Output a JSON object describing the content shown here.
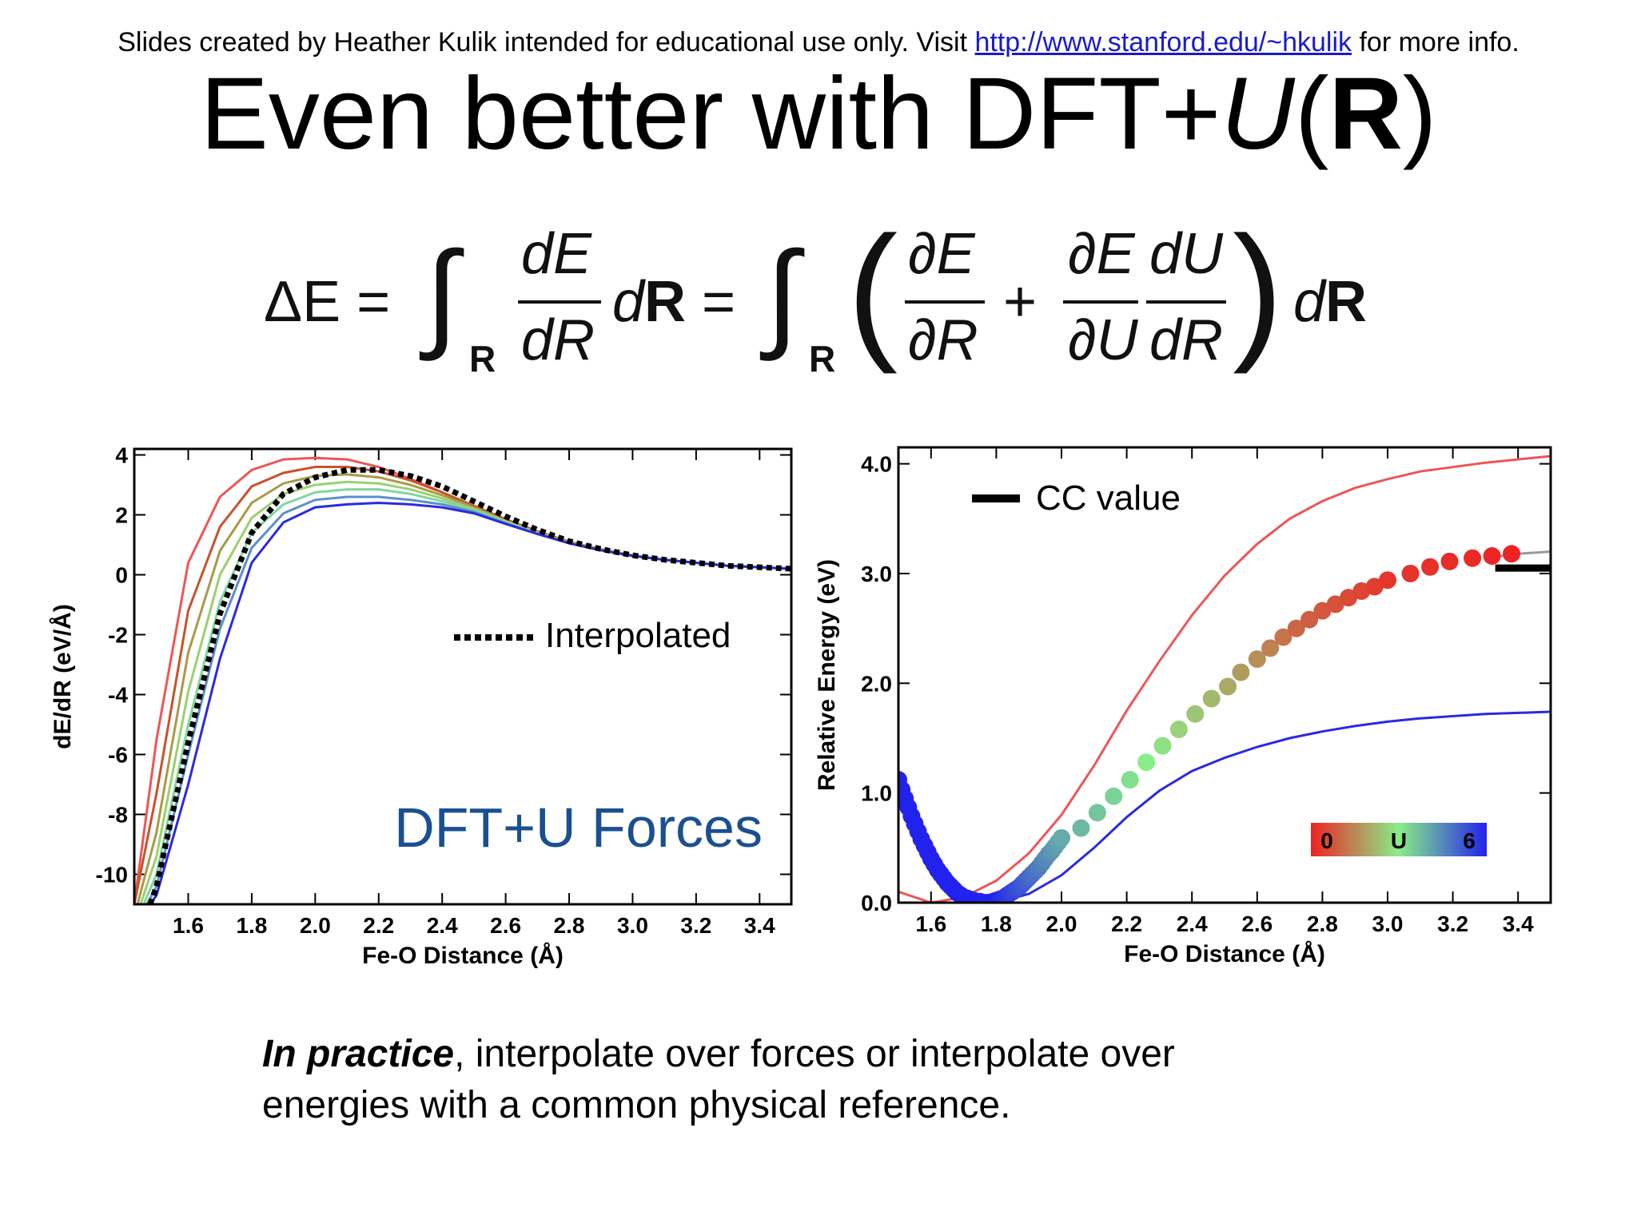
{
  "header": {
    "credit_prefix": "Slides created by Heather Kulik intended for educational use only. Visit ",
    "credit_link": "http://www.stanford.edu/~hkulik",
    "credit_suffix": " for more info."
  },
  "title": {
    "part1": "Even better with DFT+",
    "part2": "U",
    "part3": "(",
    "part4": "R",
    "part5": ")"
  },
  "equation": {
    "text": "ΔE = ∫_R dE/dR dR = ∫_R ( ∂E/∂R + ∂E/∂U dU/dR ) dR",
    "lhs": "ΔE =",
    "int_sub": "R",
    "frac1_num": "dE",
    "frac1_den": "dR",
    "d": "d",
    "R": "R",
    "eq": "=",
    "pfrac1_num": "∂E",
    "pfrac1_den": "∂R",
    "plus": "+",
    "pfrac2_num": "∂E",
    "pfrac2_den": "∂U",
    "frac3_num": "dU",
    "frac3_den": "dR"
  },
  "chart_data": [
    {
      "type": "line",
      "xlabel": "Fe-O Distance (Å)",
      "ylabel": "dE/dR (eV/Å)",
      "xlim": [
        1.43,
        3.5
      ],
      "ylim": [
        -11,
        4.2
      ],
      "xticks": [
        "1.6",
        "1.8",
        "2.0",
        "2.2",
        "2.4",
        "2.6",
        "2.8",
        "3.0",
        "3.2",
        "3.4"
      ],
      "yticks": [
        "4",
        "2",
        "0",
        "-2",
        "-4",
        "-6",
        "-8",
        "-10"
      ],
      "annotation": "DFT+U Forces",
      "annotation_color": "#1a4f91",
      "legend": [
        {
          "label": "Interpolated",
          "style": "dotted",
          "color": "#000000"
        }
      ],
      "series": [
        {
          "color": "#ee5555",
          "x": [
            1.43,
            1.5,
            1.6,
            1.7,
            1.8,
            1.9,
            2.0,
            2.1,
            2.2,
            2.3,
            2.4,
            2.5,
            2.6,
            2.7,
            2.8,
            2.9,
            3.0,
            3.1,
            3.2,
            3.3,
            3.4,
            3.5
          ],
          "y": [
            -11,
            -5.5,
            0.4,
            2.6,
            3.5,
            3.85,
            3.9,
            3.85,
            3.6,
            3.2,
            2.75,
            2.3,
            1.85,
            1.45,
            1.1,
            0.85,
            0.65,
            0.5,
            0.4,
            0.3,
            0.25,
            0.2
          ]
        },
        {
          "color": "#c8522a",
          "x": [
            1.43,
            1.5,
            1.6,
            1.7,
            1.8,
            1.9,
            2.0,
            2.1,
            2.2,
            2.3,
            2.4,
            2.5,
            2.6,
            2.7,
            2.8,
            2.9,
            3.0,
            3.1,
            3.2,
            3.3,
            3.4,
            3.5
          ],
          "y": [
            -11,
            -7.3,
            -1.2,
            1.6,
            2.95,
            3.4,
            3.6,
            3.6,
            3.45,
            3.15,
            2.75,
            2.3,
            1.85,
            1.45,
            1.1,
            0.85,
            0.65,
            0.5,
            0.4,
            0.3,
            0.25,
            0.2
          ]
        },
        {
          "color": "#a89a48",
          "x": [
            1.44,
            1.5,
            1.6,
            1.7,
            1.8,
            1.9,
            2.0,
            2.1,
            2.2,
            2.3,
            2.4,
            2.5,
            2.6,
            2.7,
            2.8,
            2.9,
            3.0,
            3.1,
            3.2,
            3.3,
            3.4,
            3.5
          ],
          "y": [
            -11,
            -8.6,
            -2.6,
            0.8,
            2.4,
            3.05,
            3.3,
            3.35,
            3.25,
            3.0,
            2.65,
            2.25,
            1.8,
            1.42,
            1.08,
            0.84,
            0.64,
            0.5,
            0.4,
            0.3,
            0.25,
            0.2
          ]
        },
        {
          "color": "#9ad070",
          "x": [
            1.45,
            1.5,
            1.6,
            1.7,
            1.8,
            1.9,
            2.0,
            2.1,
            2.2,
            2.3,
            2.4,
            2.5,
            2.6,
            2.7,
            2.8,
            2.9,
            3.0,
            3.1,
            3.2,
            3.3,
            3.4,
            3.5
          ],
          "y": [
            -11,
            -9.4,
            -3.9,
            0.0,
            1.9,
            2.7,
            3.0,
            3.1,
            3.05,
            2.85,
            2.55,
            2.2,
            1.78,
            1.4,
            1.07,
            0.83,
            0.64,
            0.5,
            0.4,
            0.3,
            0.25,
            0.2
          ]
        },
        {
          "color": "#7fd6a0",
          "x": [
            1.46,
            1.5,
            1.6,
            1.7,
            1.8,
            1.9,
            2.0,
            2.1,
            2.2,
            2.3,
            2.4,
            2.5,
            2.6,
            2.7,
            2.8,
            2.9,
            3.0,
            3.1,
            3.2,
            3.3,
            3.4,
            3.5
          ],
          "y": [
            -11,
            -10.0,
            -5.0,
            -0.9,
            1.4,
            2.35,
            2.75,
            2.85,
            2.85,
            2.7,
            2.45,
            2.15,
            1.75,
            1.38,
            1.06,
            0.82,
            0.63,
            0.5,
            0.4,
            0.3,
            0.25,
            0.2
          ]
        },
        {
          "color": "#5a90c8",
          "x": [
            1.47,
            1.5,
            1.6,
            1.7,
            1.8,
            1.9,
            2.0,
            2.1,
            2.2,
            2.3,
            2.4,
            2.5,
            2.6,
            2.7,
            2.8,
            2.9,
            3.0,
            3.1,
            3.2,
            3.3,
            3.4,
            3.5
          ],
          "y": [
            -11,
            -10.4,
            -6.0,
            -1.8,
            0.9,
            2.05,
            2.5,
            2.6,
            2.6,
            2.5,
            2.35,
            2.1,
            1.72,
            1.37,
            1.05,
            0.82,
            0.63,
            0.5,
            0.4,
            0.3,
            0.25,
            0.2
          ]
        },
        {
          "color": "#2a2ae0",
          "x": [
            1.48,
            1.5,
            1.6,
            1.7,
            1.8,
            1.9,
            2.0,
            2.1,
            2.2,
            2.3,
            2.4,
            2.5,
            2.6,
            2.7,
            2.8,
            2.9,
            3.0,
            3.1,
            3.2,
            3.3,
            3.4,
            3.5
          ],
          "y": [
            -11,
            -10.7,
            -7.0,
            -2.8,
            0.4,
            1.75,
            2.25,
            2.35,
            2.4,
            2.35,
            2.25,
            2.05,
            1.7,
            1.36,
            1.05,
            0.82,
            0.63,
            0.5,
            0.4,
            0.3,
            0.25,
            0.2
          ]
        },
        {
          "name": "Interpolated",
          "color": "#000000",
          "dashed": true,
          "x": [
            1.48,
            1.5,
            1.6,
            1.7,
            1.8,
            1.9,
            2.0,
            2.1,
            2.2,
            2.3,
            2.4,
            2.5,
            2.6,
            2.7,
            2.8,
            2.9,
            3.0,
            3.1,
            3.2,
            3.3,
            3.4,
            3.5
          ],
          "y": [
            -11,
            -10.4,
            -5.6,
            -1.3,
            1.4,
            2.7,
            3.25,
            3.5,
            3.5,
            3.3,
            2.95,
            2.45,
            1.95,
            1.5,
            1.12,
            0.86,
            0.65,
            0.5,
            0.4,
            0.3,
            0.25,
            0.2
          ]
        }
      ]
    },
    {
      "type": "line",
      "xlabel": "Fe-O Distance (Å)",
      "ylabel": "Relative Energy (eV)",
      "xlim": [
        1.5,
        3.5
      ],
      "ylim": [
        0,
        4.15
      ],
      "xticks": [
        "1.6",
        "1.8",
        "2.0",
        "2.2",
        "2.4",
        "2.6",
        "2.8",
        "3.0",
        "3.2",
        "3.4"
      ],
      "yticks": [
        "4.0",
        "3.0",
        "2.0",
        "1.0",
        "0.0"
      ],
      "legend": [
        {
          "label": "CC value",
          "style": "bar",
          "color": "#000000"
        }
      ],
      "colorbar": {
        "labels": [
          "0",
          "U",
          "6"
        ],
        "colors": [
          "#ee2222",
          "#88ee88",
          "#2222ee"
        ]
      },
      "cc_value": 3.05,
      "series": [
        {
          "color": "#ee5555",
          "x": [
            1.5,
            1.6,
            1.7,
            1.8,
            1.9,
            2.0,
            2.1,
            2.2,
            2.3,
            2.4,
            2.5,
            2.6,
            2.7,
            2.8,
            2.9,
            3.0,
            3.1,
            3.2,
            3.3,
            3.4,
            3.5
          ],
          "y": [
            0.1,
            0.0,
            0.05,
            0.2,
            0.45,
            0.8,
            1.25,
            1.75,
            2.2,
            2.62,
            2.98,
            3.27,
            3.5,
            3.66,
            3.78,
            3.86,
            3.93,
            3.97,
            4.01,
            4.04,
            4.07
          ]
        },
        {
          "color": "#2a2ae0",
          "x": [
            1.6,
            1.7,
            1.8,
            1.9,
            2.0,
            2.1,
            2.2,
            2.3,
            2.4,
            2.5,
            2.6,
            2.7,
            2.8,
            2.9,
            3.0,
            3.1,
            3.2,
            3.3,
            3.4,
            3.5
          ],
          "y": [
            0.3,
            0.05,
            0.0,
            0.08,
            0.25,
            0.5,
            0.78,
            1.02,
            1.2,
            1.32,
            1.42,
            1.5,
            1.56,
            1.61,
            1.65,
            1.68,
            1.7,
            1.72,
            1.73,
            1.74
          ]
        },
        {
          "color": "#999999",
          "x": [
            3.3,
            3.35,
            3.4,
            3.45,
            3.5
          ],
          "y": [
            3.13,
            3.16,
            3.18,
            3.19,
            3.2
          ]
        }
      ],
      "points": {
        "x": [
          1.5,
          1.51,
          1.52,
          1.53,
          1.54,
          1.55,
          1.56,
          1.57,
          1.58,
          1.59,
          1.6,
          1.61,
          1.62,
          1.63,
          1.64,
          1.65,
          1.66,
          1.67,
          1.68,
          1.69,
          1.7,
          1.71,
          1.72,
          1.73,
          1.74,
          1.75,
          1.76,
          1.77,
          1.78,
          1.79,
          1.8,
          1.81,
          1.82,
          1.83,
          1.84,
          1.85,
          1.86,
          1.87,
          1.88,
          1.89,
          1.9,
          1.91,
          1.92,
          1.93,
          1.94,
          1.95,
          1.96,
          1.97,
          1.98,
          1.99,
          2.0,
          2.06,
          2.11,
          2.16,
          2.21,
          2.26,
          2.31,
          2.36,
          2.41,
          2.46,
          2.51,
          2.55,
          2.6,
          2.64,
          2.68,
          2.72,
          2.76,
          2.8,
          2.84,
          2.88,
          2.92,
          2.96,
          3.0,
          3.07,
          3.13,
          3.19,
          3.26,
          3.32,
          3.38
        ],
        "y": [
          1.12,
          1.03,
          0.95,
          0.87,
          0.79,
          0.72,
          0.65,
          0.58,
          0.52,
          0.46,
          0.4,
          0.35,
          0.3,
          0.26,
          0.22,
          0.18,
          0.15,
          0.12,
          0.09,
          0.07,
          0.05,
          0.04,
          0.03,
          0.02,
          0.01,
          0.01,
          0.0,
          0.0,
          0.0,
          0.01,
          0.02,
          0.03,
          0.04,
          0.06,
          0.08,
          0.1,
          0.12,
          0.14,
          0.17,
          0.2,
          0.23,
          0.26,
          0.29,
          0.32,
          0.36,
          0.4,
          0.44,
          0.47,
          0.51,
          0.55,
          0.59,
          0.68,
          0.82,
          0.97,
          1.12,
          1.28,
          1.43,
          1.58,
          1.72,
          1.86,
          1.97,
          2.1,
          2.22,
          2.32,
          2.42,
          2.5,
          2.58,
          2.66,
          2.72,
          2.78,
          2.84,
          2.88,
          2.94,
          3.0,
          3.06,
          3.11,
          3.14,
          3.16,
          3.18
        ],
        "u_values": [
          6,
          6,
          6,
          6,
          6,
          6,
          6,
          6,
          6,
          6,
          6,
          6,
          6,
          6,
          6,
          6,
          6,
          6,
          6,
          6,
          6,
          6,
          6,
          6,
          6,
          6,
          6,
          6,
          6,
          6,
          6,
          5.9,
          5.8,
          5.7,
          5.6,
          5.5,
          5.4,
          5.3,
          5.2,
          5.1,
          5.0,
          4.9,
          4.8,
          4.7,
          4.6,
          4.5,
          4.4,
          4.3,
          4.2,
          4.1,
          4.0,
          3.8,
          3.6,
          3.4,
          3.2,
          3.0,
          2.8,
          2.6,
          2.4,
          2.2,
          2.0,
          1.8,
          1.6,
          1.4,
          1.2,
          1.0,
          0.9,
          0.8,
          0.7,
          0.6,
          0.5,
          0.4,
          0.3,
          0.25,
          0.2,
          0.15,
          0.1,
          0.05,
          0.0
        ]
      }
    }
  ],
  "caption": {
    "lead": "In practice",
    "rest_line1": ", interpolate over forces or interpolate over",
    "line2": "energies with a common physical reference."
  }
}
